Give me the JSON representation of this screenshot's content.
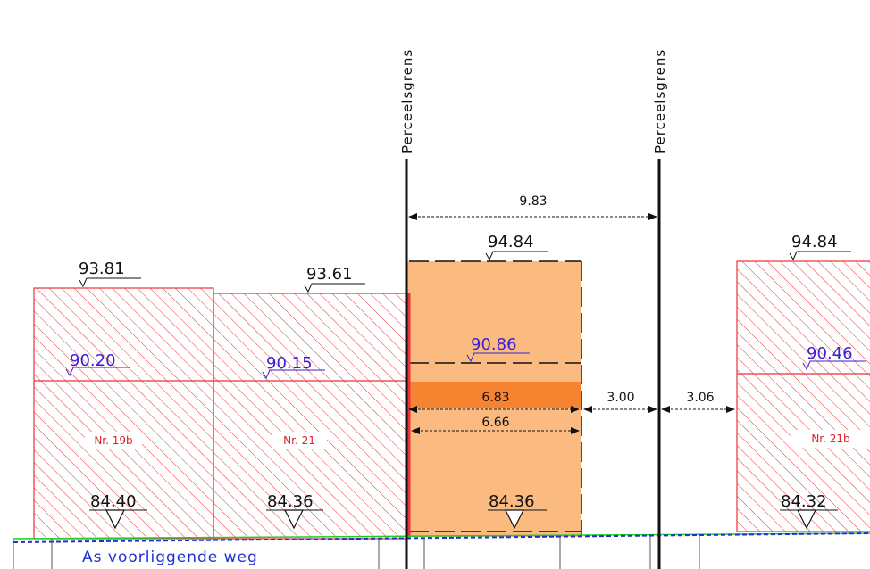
{
  "plot_lines": {
    "left_label": "Perceelsgrens",
    "right_label": "Perceelsgrens"
  },
  "dimensions": {
    "plot_width": "9.83",
    "width_upper": "6.83",
    "width_lower": "6.66",
    "gap_right": "3.00",
    "gap_neighbor": "3.06"
  },
  "buildings": {
    "nr19b": {
      "label": "Nr. 19b",
      "ridge": "93.81",
      "eave": "90.20",
      "ground": "84.40"
    },
    "nr21": {
      "label": "Nr. 21",
      "ridge": "93.61",
      "eave": "90.15",
      "ground": "84.36"
    },
    "new": {
      "ridge": "94.84",
      "eave": "90.86",
      "ground": "84.36"
    },
    "nr21b": {
      "label": "Nr. 21b",
      "ridge": "94.84",
      "eave": "90.46",
      "ground": "84.32"
    }
  },
  "road": {
    "axis_label": "As voorliggende weg"
  },
  "colors": {
    "hatch": "#e8333a",
    "new_fill": "#fbbb80",
    "new_band": "#f5832f",
    "level_blue": "#3a1fd6",
    "road_green": "#22cc22",
    "road_blue": "#1f2fd8"
  }
}
